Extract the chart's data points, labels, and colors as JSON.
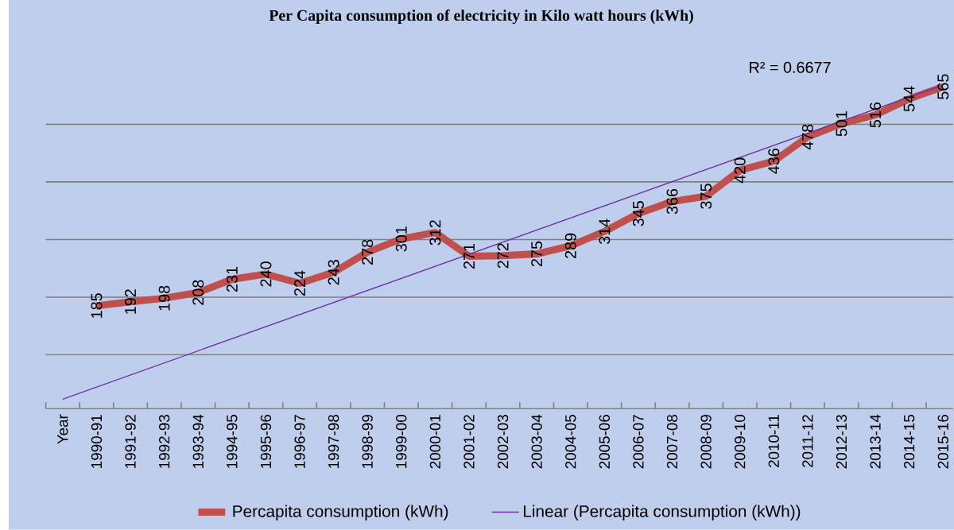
{
  "chart_data": {
    "type": "line",
    "title": "Per Capita consumption of electricity in Kilo watt hours (kWh)",
    "categories": [
      "Year",
      "1990-91",
      "1991-92",
      "1992-93",
      "1993-94",
      "1994-95",
      "1995-96",
      "1996-97",
      "1997-98",
      "1998-99",
      "1999-00",
      "2000-01",
      "2001-02",
      "2002-03",
      "2003-04",
      "2004-05",
      "2005-06",
      "2006-07",
      "2007-08",
      "2008-09",
      "2009-10",
      "2010-11",
      "2011-12",
      "2012-13",
      "2013-14",
      "2014-15",
      "2015-16"
    ],
    "series": [
      {
        "name": "Percapita consumption (kWh)",
        "color": "#c0504d",
        "values": [
          null,
          185,
          192,
          198,
          208,
          231,
          240,
          224,
          243,
          278,
          301,
          312,
          271,
          272,
          275,
          289,
          314,
          345,
          366,
          375,
          420,
          436,
          478,
          501,
          516,
          544,
          565
        ],
        "value_labels": [
          null,
          "185",
          "192",
          "198",
          "208",
          "231",
          "240",
          "224",
          "243",
          "278",
          "301",
          "312",
          "271",
          "272",
          "275",
          "289",
          "314",
          "345",
          "366",
          "375",
          "420",
          "436",
          "478",
          "501",
          "516",
          "544",
          "565"
        ]
      },
      {
        "name": "Linear (Percapita consumption (kWh))",
        "type": "line",
        "color": "#7030a0",
        "values": [
          23,
          null,
          null,
          null,
          null,
          null,
          null,
          null,
          null,
          null,
          null,
          null,
          null,
          null,
          null,
          null,
          null,
          null,
          null,
          null,
          null,
          null,
          null,
          null,
          null,
          null,
          568
        ]
      }
    ],
    "grid": "y",
    "legend": "bottom",
    "marker": "none",
    "line_style": "solid",
    "annotations": [
      "R² = 0.6677"
    ]
  }
}
